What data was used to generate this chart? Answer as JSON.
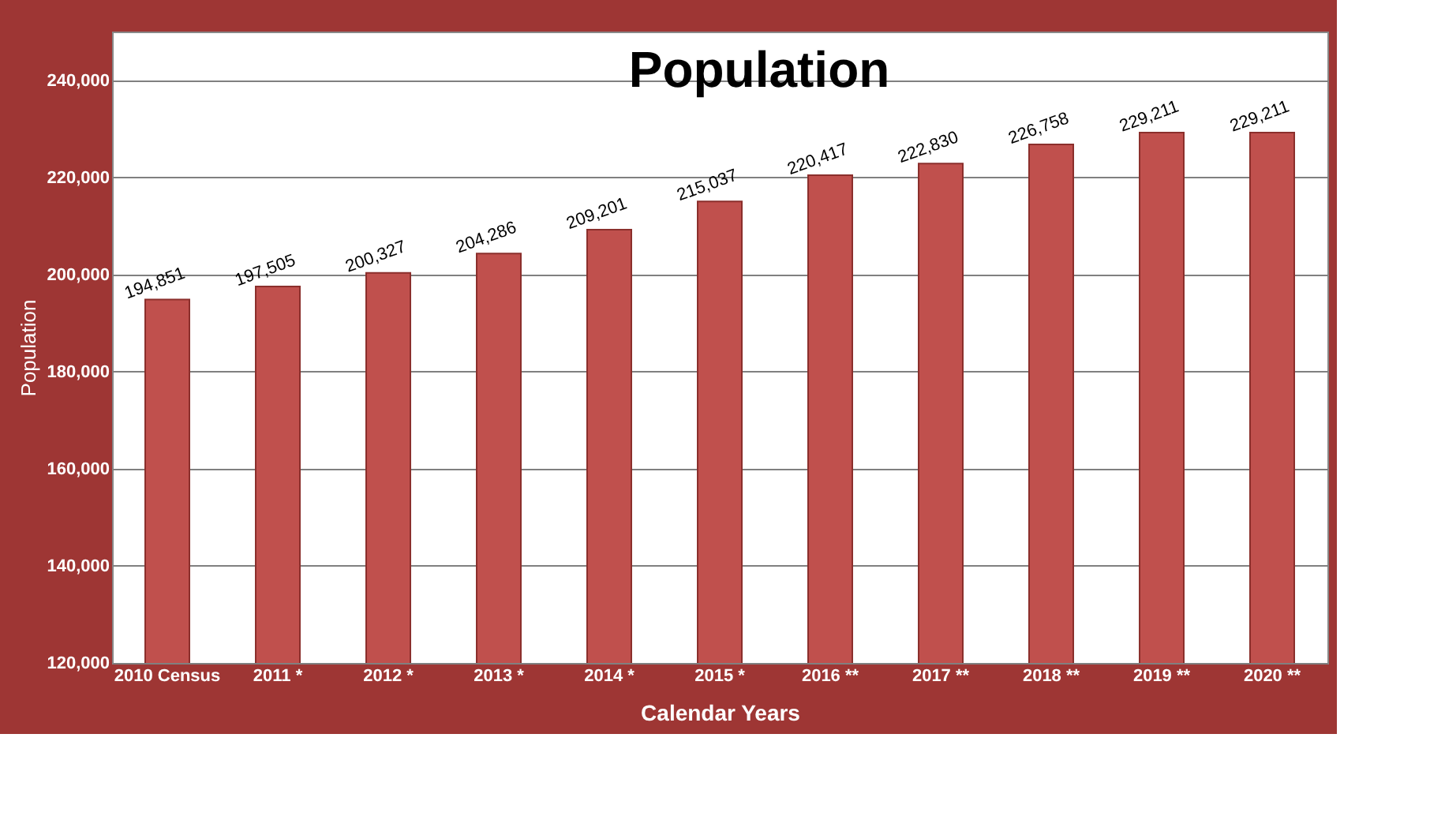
{
  "chart_data": {
    "type": "bar",
    "title": "Population",
    "xlabel": "Calendar Years",
    "ylabel": "Population",
    "categories": [
      "2010 Census",
      "2011 *",
      "2012 *",
      "2013 *",
      "2014 *",
      "2015 *",
      "2016 **",
      "2017 **",
      "2018 **",
      "2019 **",
      "2020 **"
    ],
    "values": [
      194851,
      197505,
      200327,
      204286,
      209201,
      215037,
      220417,
      222830,
      226758,
      229211,
      229211
    ],
    "value_labels": [
      "194,851",
      "197,505",
      "200,327",
      "204,286",
      "209,201",
      "215,037",
      "220,417",
      "222,830",
      "226,758",
      "229,211",
      "229,211"
    ],
    "color": "#c0504d",
    "grid": "y",
    "ylim": [
      120000,
      250000
    ],
    "yticks": [
      {
        "value": 120000,
        "label": "120,000"
      },
      {
        "value": 140000,
        "label": "140,000"
      },
      {
        "value": 160000,
        "label": "160,000"
      },
      {
        "value": 180000,
        "label": "180,000"
      },
      {
        "value": 200000,
        "label": "200,000"
      },
      {
        "value": 220000,
        "label": "220,000"
      },
      {
        "value": 240000,
        "label": "240,000"
      }
    ]
  }
}
